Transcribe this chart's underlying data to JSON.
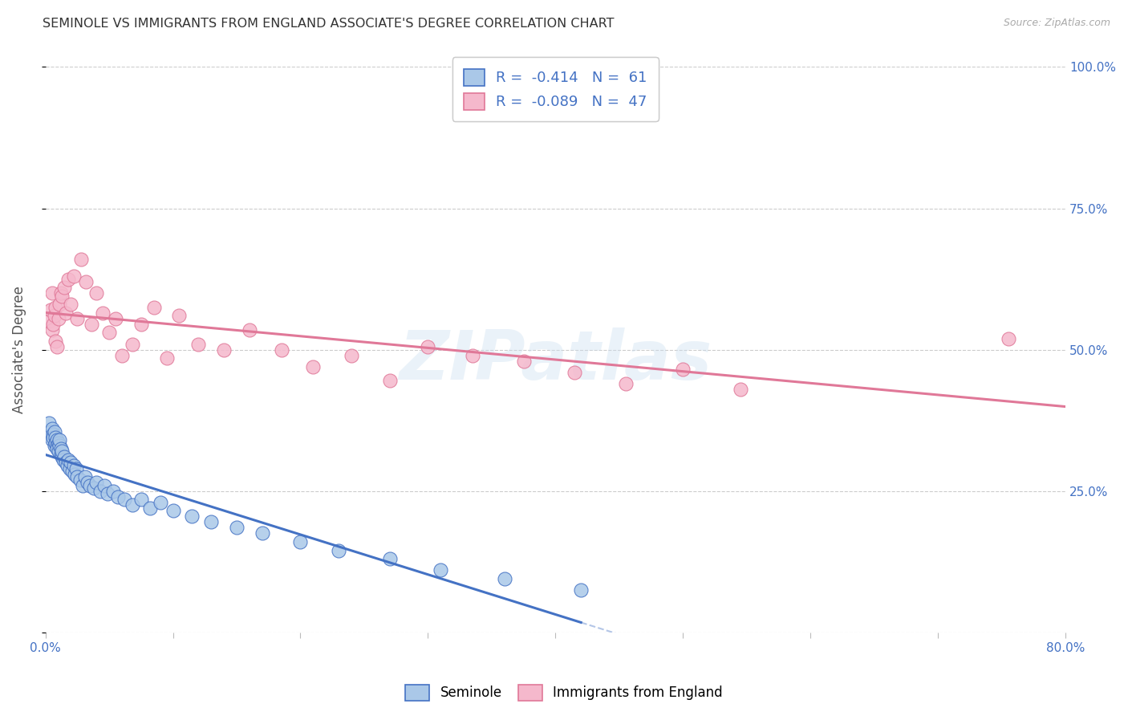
{
  "title": "SEMINOLE VS IMMIGRANTS FROM ENGLAND ASSOCIATE'S DEGREE CORRELATION CHART",
  "source": "Source: ZipAtlas.com",
  "ylabel": "Associate's Degree",
  "ytick_labels": [
    "",
    "25.0%",
    "50.0%",
    "75.0%",
    "100.0%"
  ],
  "ytick_vals": [
    0.0,
    0.25,
    0.5,
    0.75,
    1.0
  ],
  "xtick_labels": [
    "0.0%",
    "",
    "",
    "",
    "",
    "",
    "",
    "",
    "80.0%"
  ],
  "xtick_vals": [
    0.0,
    0.1,
    0.2,
    0.3,
    0.4,
    0.5,
    0.6,
    0.7,
    0.8
  ],
  "xlim": [
    0.0,
    0.8
  ],
  "ylim": [
    0.0,
    1.0
  ],
  "seminole_R": -0.414,
  "seminole_N": 61,
  "england_R": -0.089,
  "england_N": 47,
  "seminole_color": "#aac8e8",
  "england_color": "#f5b8cc",
  "seminole_line_color": "#4472c4",
  "england_line_color": "#e07898",
  "watermark": "ZIPatlas",
  "seminole_x": [
    0.003,
    0.004,
    0.005,
    0.005,
    0.006,
    0.006,
    0.007,
    0.007,
    0.008,
    0.008,
    0.009,
    0.009,
    0.009,
    0.01,
    0.01,
    0.011,
    0.011,
    0.012,
    0.012,
    0.013,
    0.013,
    0.014,
    0.015,
    0.016,
    0.017,
    0.018,
    0.019,
    0.02,
    0.021,
    0.022,
    0.023,
    0.024,
    0.025,
    0.027,
    0.029,
    0.031,
    0.033,
    0.035,
    0.038,
    0.04,
    0.043,
    0.046,
    0.049,
    0.053,
    0.057,
    0.062,
    0.068,
    0.075,
    0.082,
    0.09,
    0.1,
    0.115,
    0.13,
    0.15,
    0.17,
    0.2,
    0.23,
    0.27,
    0.31,
    0.36,
    0.42
  ],
  "seminole_y": [
    0.37,
    0.355,
    0.36,
    0.34,
    0.35,
    0.345,
    0.355,
    0.33,
    0.345,
    0.335,
    0.34,
    0.33,
    0.325,
    0.335,
    0.32,
    0.33,
    0.34,
    0.315,
    0.325,
    0.31,
    0.32,
    0.305,
    0.31,
    0.3,
    0.295,
    0.305,
    0.29,
    0.3,
    0.285,
    0.295,
    0.28,
    0.29,
    0.275,
    0.27,
    0.26,
    0.275,
    0.265,
    0.26,
    0.255,
    0.265,
    0.25,
    0.26,
    0.245,
    0.25,
    0.24,
    0.235,
    0.225,
    0.235,
    0.22,
    0.23,
    0.215,
    0.205,
    0.195,
    0.185,
    0.175,
    0.16,
    0.145,
    0.13,
    0.11,
    0.095,
    0.075
  ],
  "england_x": [
    0.003,
    0.004,
    0.005,
    0.005,
    0.006,
    0.007,
    0.008,
    0.008,
    0.009,
    0.01,
    0.011,
    0.012,
    0.013,
    0.015,
    0.016,
    0.018,
    0.02,
    0.022,
    0.025,
    0.028,
    0.032,
    0.036,
    0.04,
    0.045,
    0.05,
    0.055,
    0.06,
    0.068,
    0.075,
    0.085,
    0.095,
    0.105,
    0.12,
    0.14,
    0.16,
    0.185,
    0.21,
    0.24,
    0.27,
    0.3,
    0.335,
    0.375,
    0.415,
    0.455,
    0.5,
    0.545,
    0.755
  ],
  "england_y": [
    0.55,
    0.57,
    0.535,
    0.6,
    0.545,
    0.56,
    0.515,
    0.575,
    0.505,
    0.555,
    0.58,
    0.6,
    0.595,
    0.61,
    0.565,
    0.625,
    0.58,
    0.63,
    0.555,
    0.66,
    0.62,
    0.545,
    0.6,
    0.565,
    0.53,
    0.555,
    0.49,
    0.51,
    0.545,
    0.575,
    0.485,
    0.56,
    0.51,
    0.5,
    0.535,
    0.5,
    0.47,
    0.49,
    0.445,
    0.505,
    0.49,
    0.48,
    0.46,
    0.44,
    0.465,
    0.43,
    0.52
  ],
  "seminole_trend_x0": 0.0,
  "seminole_trend_x1": 0.42,
  "seminole_trend_x_dash0": 0.42,
  "seminole_trend_x_dash1": 0.54,
  "england_trend_x0": 0.0,
  "england_trend_x1": 0.8
}
